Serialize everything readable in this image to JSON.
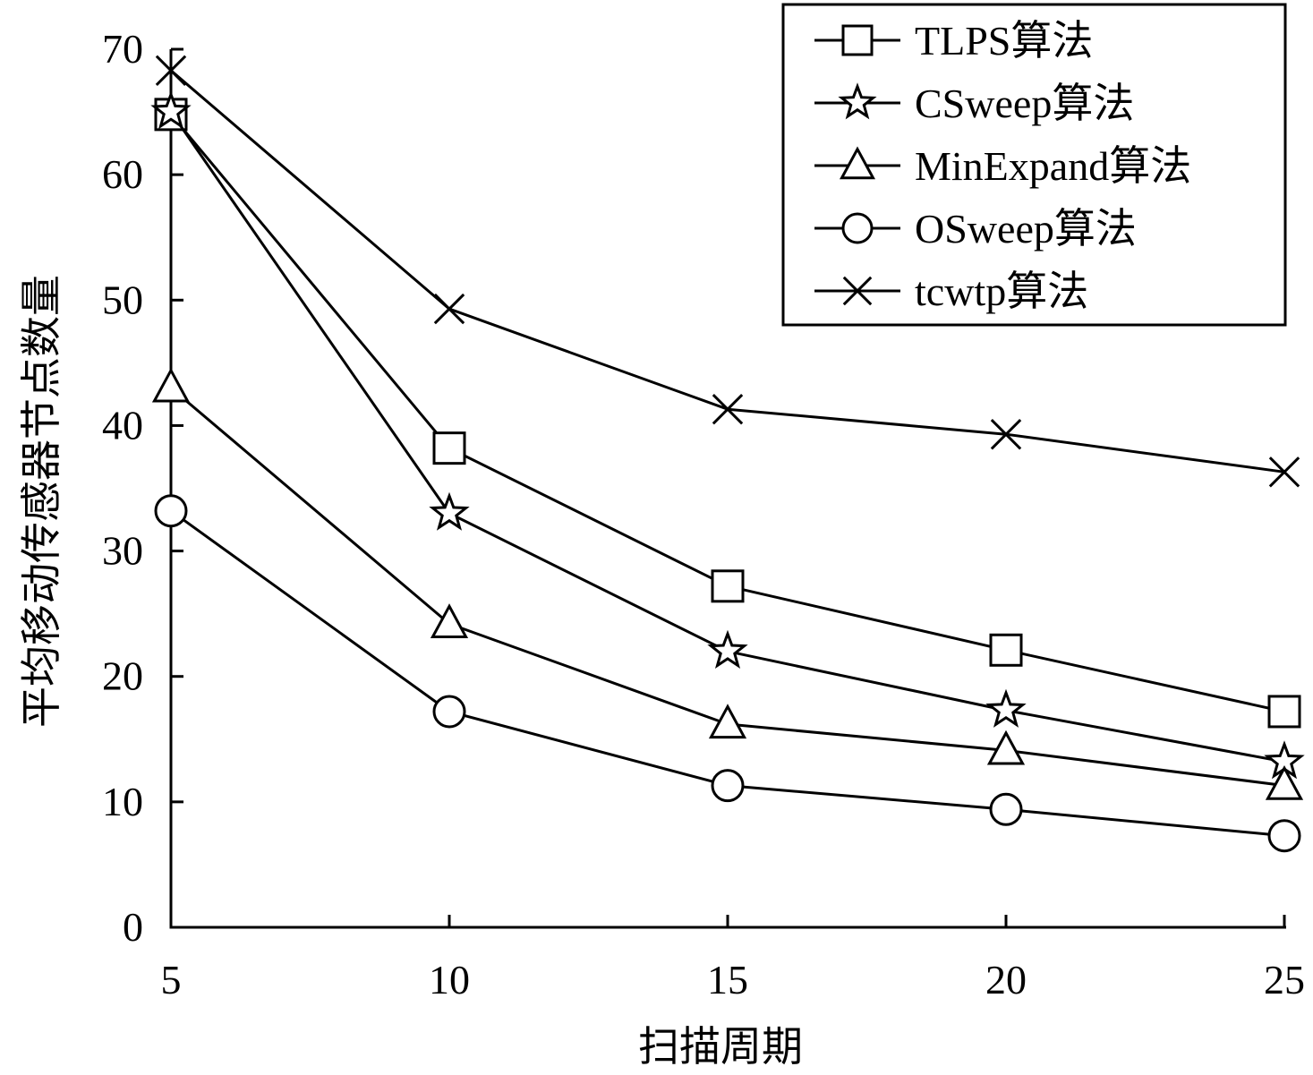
{
  "chart_data": {
    "type": "line",
    "xlabel": "扫描周期",
    "ylabel": "平均移动传感器节点数量",
    "x": [
      5,
      10,
      15,
      20,
      25
    ],
    "xticks": [
      "5",
      "10",
      "15",
      "20",
      "25"
    ],
    "yticks": [
      "0",
      "10",
      "20",
      "30",
      "40",
      "50",
      "60",
      "70"
    ],
    "xlim": [
      5,
      25
    ],
    "ylim": [
      0,
      70
    ],
    "grid": false,
    "legend_position": "top-right",
    "series": [
      {
        "name": "TLPS算法",
        "marker": "square",
        "values": [
          64.8,
          38.2,
          27.2,
          22.1,
          17.2
        ]
      },
      {
        "name": "CSweep算法",
        "marker": "star",
        "values": [
          65.0,
          33.0,
          22.0,
          17.3,
          13.2
        ]
      },
      {
        "name": "MinExpand算法",
        "marker": "triangle",
        "values": [
          43.0,
          24.2,
          16.2,
          14.1,
          11.3
        ]
      },
      {
        "name": "OSweep算法",
        "marker": "circle",
        "values": [
          33.2,
          17.2,
          11.3,
          9.4,
          7.3
        ]
      },
      {
        "name": "tcwtp算法",
        "marker": "cross",
        "values": [
          68.3,
          49.3,
          41.3,
          39.3,
          36.3
        ]
      }
    ],
    "colors": {
      "line": "#000000",
      "background": "#ffffff"
    }
  }
}
